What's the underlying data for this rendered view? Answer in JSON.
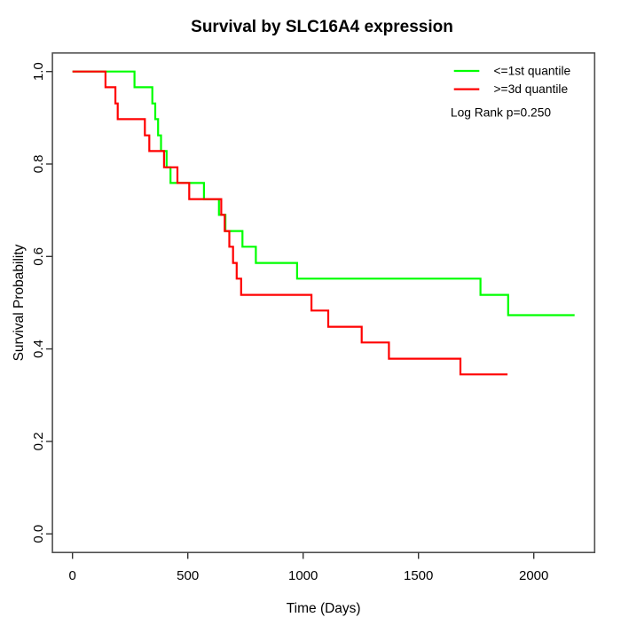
{
  "chart_data": {
    "type": "line",
    "subtype": "kaplan-meier-step",
    "title": "Survival by SLC16A4 expression",
    "xlabel": "Time (Days)",
    "ylabel": "Survival Probability",
    "x_ticks": [
      0,
      500,
      1000,
      1500,
      2000
    ],
    "y_tick_labels": [
      "0.0",
      "0.2",
      "0.4",
      "0.6",
      "0.8",
      "1.0"
    ],
    "xlim": [
      0,
      2264
    ],
    "ylim": [
      0,
      1
    ],
    "grid": false,
    "legend_position": "top-right",
    "annotation": "Log Rank p=0.250",
    "series": [
      {
        "name": "<=1st quantile",
        "color": "#00ff00",
        "points": [
          [
            0,
            1.0
          ],
          [
            269,
            0.966
          ],
          [
            346,
            0.931
          ],
          [
            359,
            0.897
          ],
          [
            371,
            0.862
          ],
          [
            384,
            0.828
          ],
          [
            408,
            0.793
          ],
          [
            425,
            0.759
          ],
          [
            570,
            0.724
          ],
          [
            635,
            0.69
          ],
          [
            663,
            0.655
          ],
          [
            737,
            0.621
          ],
          [
            795,
            0.586
          ],
          [
            974,
            0.552
          ],
          [
            1769,
            0.517
          ],
          [
            1889,
            0.473
          ],
          [
            2177,
            0.473
          ]
        ]
      },
      {
        "name": ">=3d quantile",
        "color": "#ff0000",
        "points": [
          [
            0,
            1.0
          ],
          [
            143,
            0.966
          ],
          [
            186,
            0.931
          ],
          [
            196,
            0.897
          ],
          [
            314,
            0.862
          ],
          [
            333,
            0.828
          ],
          [
            397,
            0.793
          ],
          [
            455,
            0.759
          ],
          [
            506,
            0.724
          ],
          [
            645,
            0.69
          ],
          [
            660,
            0.655
          ],
          [
            680,
            0.621
          ],
          [
            696,
            0.586
          ],
          [
            712,
            0.552
          ],
          [
            731,
            0.517
          ],
          [
            1036,
            0.483
          ],
          [
            1109,
            0.448
          ],
          [
            1254,
            0.414
          ],
          [
            1372,
            0.379
          ],
          [
            1682,
            0.345
          ],
          [
            1886,
            0.345
          ]
        ]
      }
    ]
  }
}
